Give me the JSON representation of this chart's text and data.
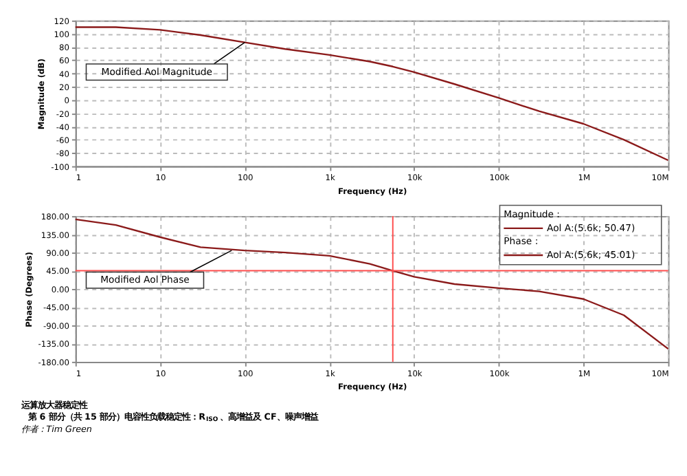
{
  "chart_data": [
    {
      "type": "line",
      "xlabel": "Frequency (Hz)",
      "ylabel": "Magnitude (dB)",
      "log": "x",
      "grid": true,
      "x": [
        1,
        3,
        10,
        30,
        100,
        300,
        1000,
        3000,
        5600,
        10000,
        30000,
        100000,
        300000,
        1000000,
        3000000,
        10000000
      ],
      "series": [
        {
          "color": "#8b1a1a",
          "values": [
            110,
            110,
            106,
            98,
            87,
            77,
            68,
            58,
            50.47,
            42,
            24,
            3,
            -17,
            -36,
            -60,
            -91
          ]
        }
      ],
      "xlim": [
        1,
        10000000
      ],
      "xticks": [
        1,
        10,
        100,
        {
          "value": 1000,
          "label": "1k"
        },
        {
          "value": 10000,
          "label": "10k"
        },
        {
          "value": 100000,
          "label": "100k"
        },
        {
          "value": 1000000,
          "label": "1M"
        },
        {
          "value": 10000000,
          "label": "10M"
        }
      ],
      "ylim": [
        -100,
        120
      ],
      "yticks": [
        -100,
        -80,
        -60,
        -40,
        -20,
        0,
        20,
        40,
        60,
        80,
        100,
        120
      ],
      "annotations": [
        {
          "text": "Modified Aol Magnitude",
          "x": 100,
          "y": 87
        }
      ]
    },
    {
      "type": "line",
      "xlabel": "Frequency (Hz)",
      "ylabel": "Phase (Degrees)",
      "log": "x",
      "grid": true,
      "x": [
        1,
        3,
        10,
        30,
        100,
        300,
        1000,
        3000,
        5600,
        10000,
        30000,
        100000,
        300000,
        1000000,
        3000000,
        10000000
      ],
      "series": [
        {
          "color": "#8b1a1a",
          "values": [
            172,
            158,
            128,
            103,
            95,
            90,
            82,
            62,
            45.01,
            30,
            12,
            2,
            -6,
            -25,
            -65,
            -148
          ]
        }
      ],
      "xlim": [
        1,
        10000000
      ],
      "xticks": [
        1,
        10,
        100,
        {
          "value": 1000,
          "label": "1k"
        },
        {
          "value": 10000,
          "label": "10k"
        },
        {
          "value": 100000,
          "label": "100k"
        },
        {
          "value": 1000000,
          "label": "1M"
        },
        {
          "value": 10000000,
          "label": "10M"
        }
      ],
      "ylim": [
        -180,
        180
      ],
      "yticks": [
        {
          "value": -180,
          "label": "-180.00"
        },
        {
          "value": -135,
          "label": "-135.00"
        },
        {
          "value": -90,
          "label": "-90.00"
        },
        {
          "value": -45,
          "label": "-45.00"
        },
        {
          "value": 0,
          "label": "0.00"
        },
        {
          "value": 45,
          "label": "45.00"
        },
        {
          "value": 90,
          "label": "90.00"
        },
        {
          "value": 135,
          "label": "135.00"
        },
        {
          "value": 180,
          "label": "180.00"
        }
      ],
      "ref_lines": [
        {
          "axis": "x",
          "value": 5600,
          "color": "#ff4d4d"
        },
        {
          "axis": "y",
          "value": 45,
          "color": "#ff4d4d"
        }
      ],
      "annotations": [
        {
          "text": "Modified Aol Phase",
          "x": 70,
          "y": 95
        },
        "Magnitude :",
        "Aol  A:(5.6k; 50.47)",
        "Phase :",
        "Aol  A:(5.6k; 45.01)"
      ]
    },
    {
      "type": "other",
      "title": "运算放大器稳定性",
      "subtitle": "第 6 部分（共 15 部分）电容性负载稳定性：R$_{ISO}$、高增益及 CF、噪声增益",
      "annotations": [
        "作者：Tim Green"
      ]
    }
  ]
}
